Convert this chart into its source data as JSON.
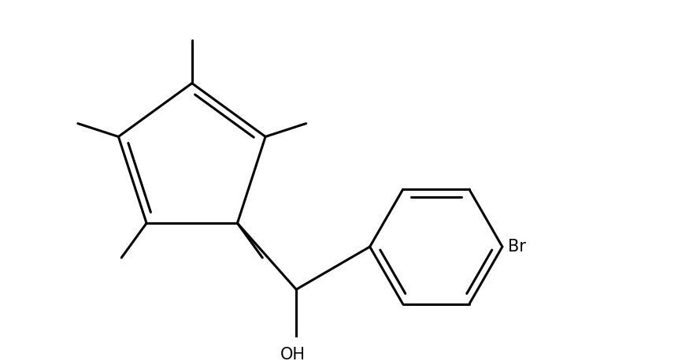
{
  "background_color": "#ffffff",
  "line_color": "#000000",
  "line_width": 2.2,
  "font_size_label": 15,
  "fig_width": 8.8,
  "fig_height": 4.58,
  "dpi": 100
}
